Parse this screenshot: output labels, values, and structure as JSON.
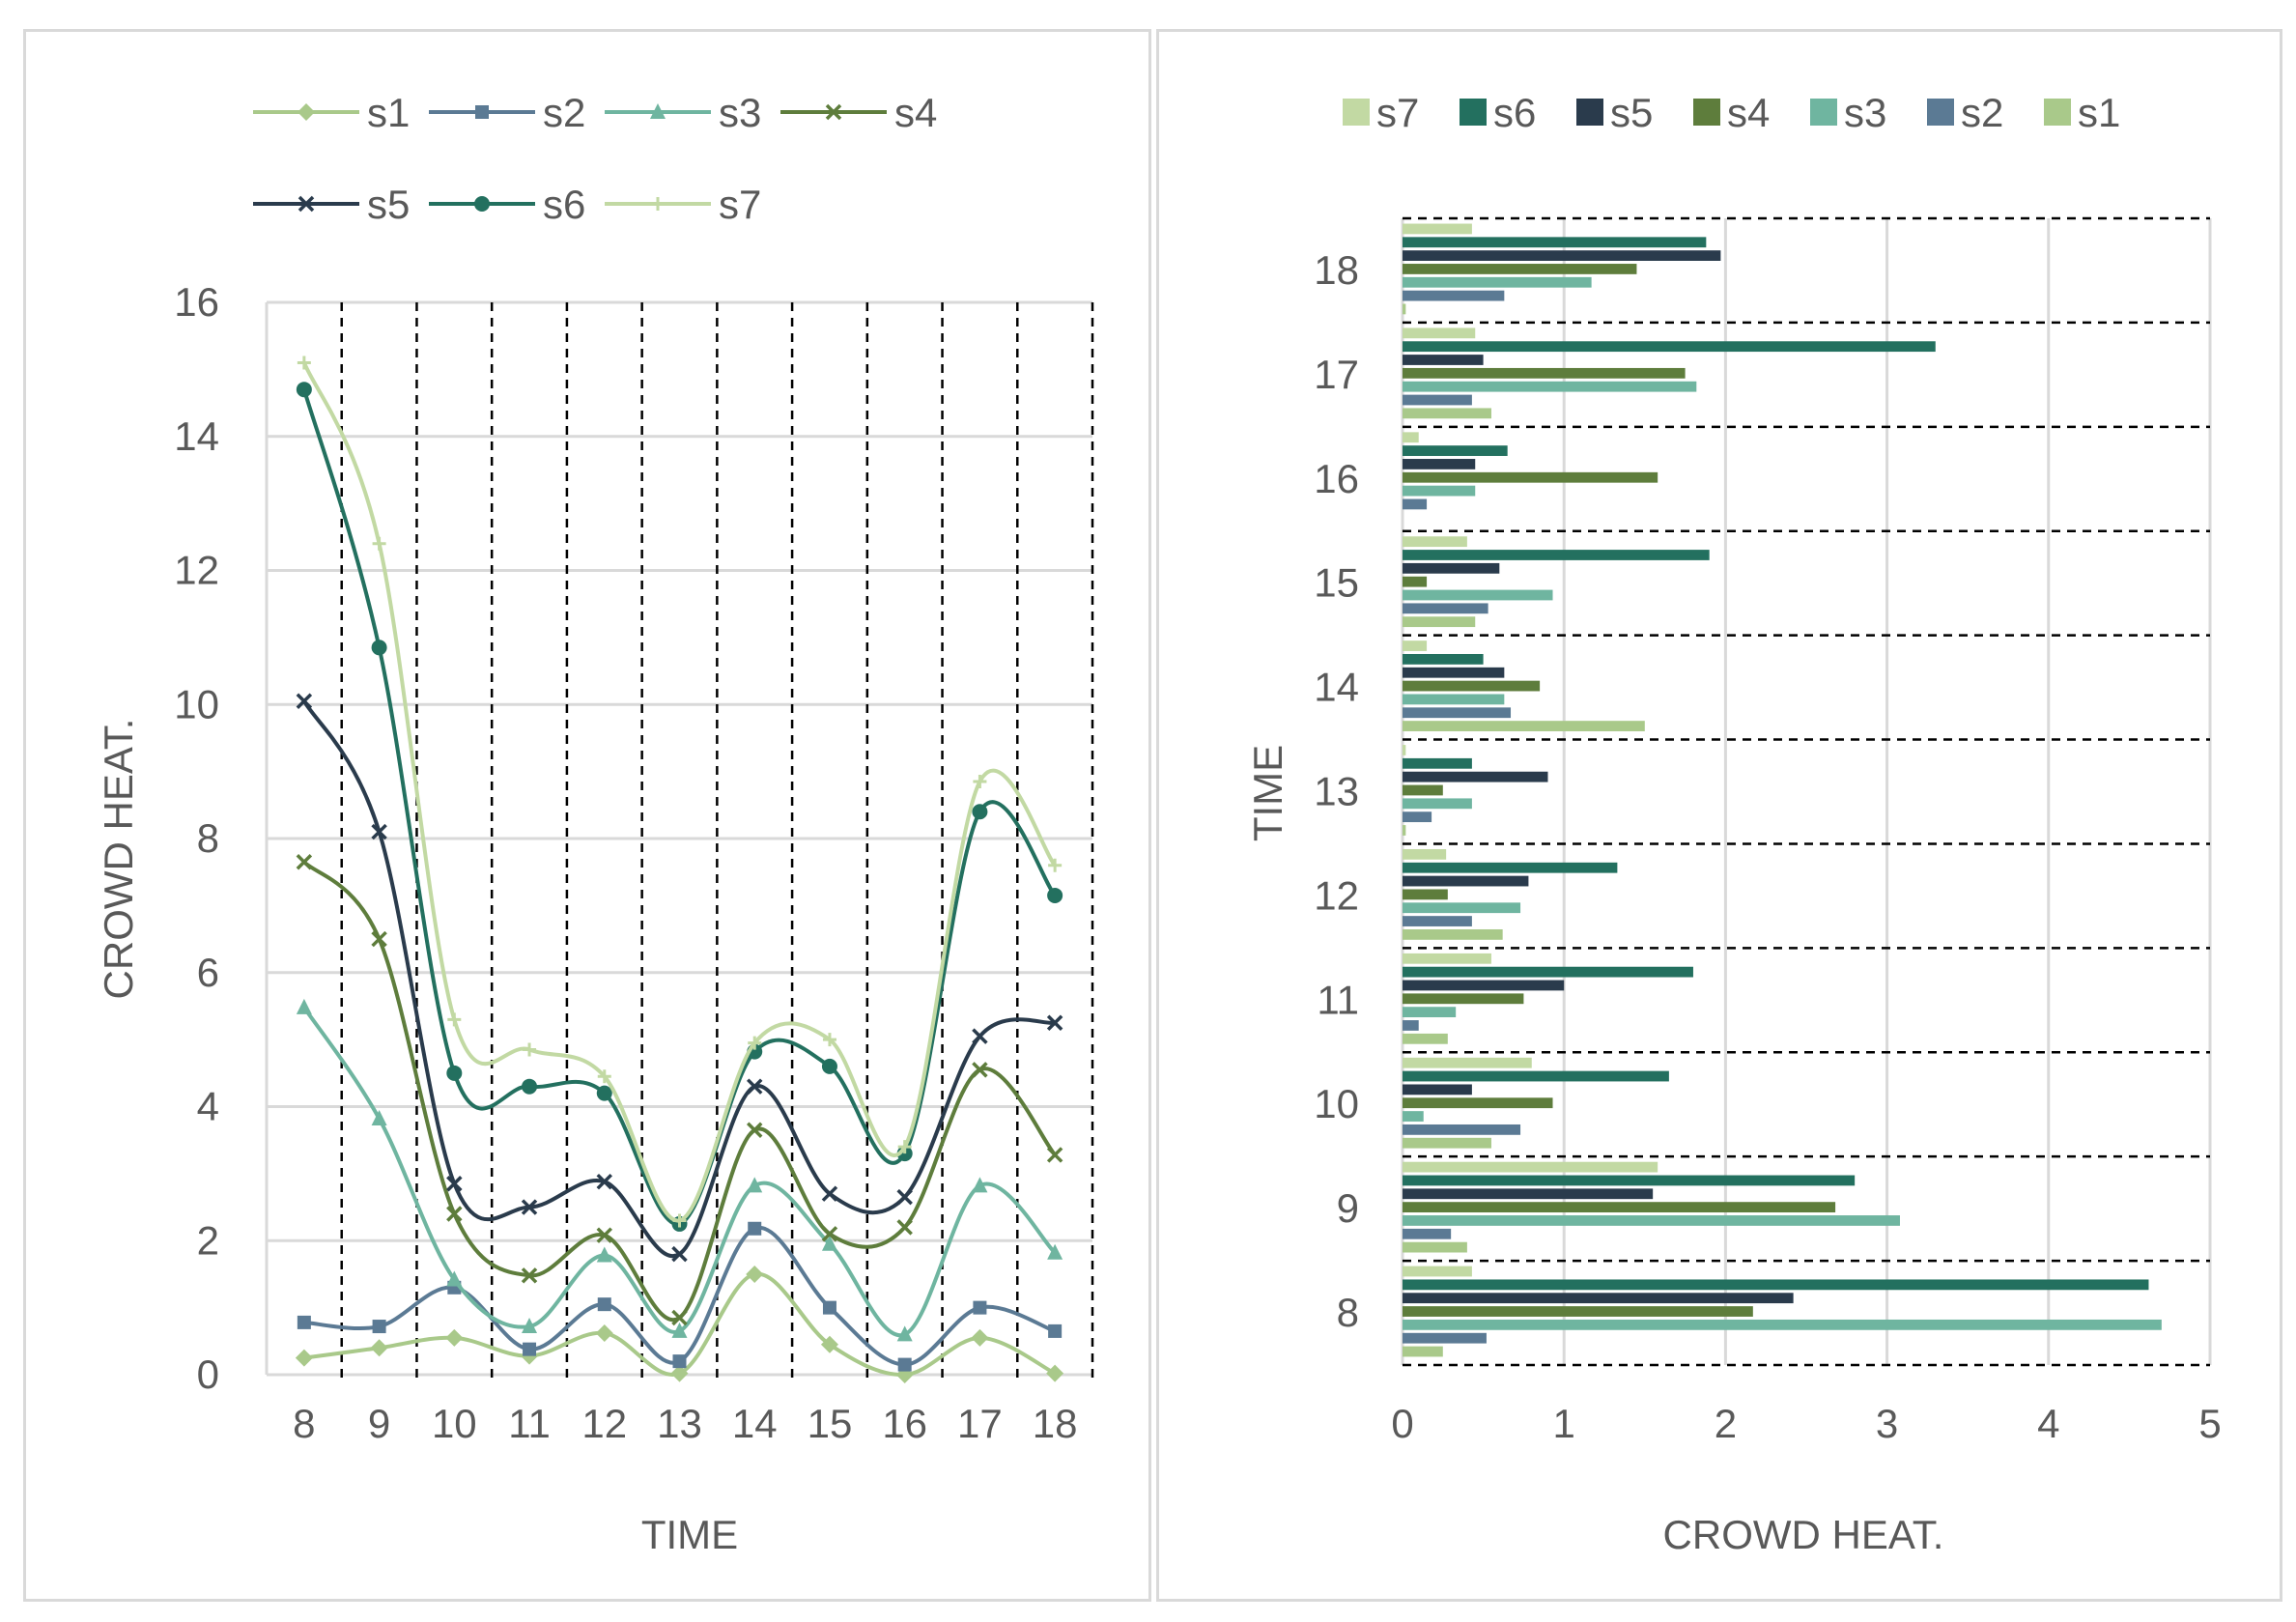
{
  "colors": {
    "s1": "#a9c98a",
    "s2": "#5b7a94",
    "s3": "#6fb5a0",
    "s4": "#5e7d3c",
    "s5": "#2a3b4c",
    "s6": "#23705f",
    "s7": "#c2d9a3",
    "grid": "#d9d9d9",
    "axis_text": "#595959"
  },
  "chart_data": [
    {
      "type": "line",
      "title": "",
      "xlabel": "TIME",
      "ylabel": "CROWD HEAT.",
      "x": [
        8,
        9,
        10,
        11,
        12,
        13,
        14,
        15,
        16,
        17,
        18
      ],
      "ylim": [
        0,
        16
      ],
      "yticks": [
        0,
        2,
        4,
        6,
        8,
        10,
        12,
        14,
        16
      ],
      "grid": true,
      "smooth": true,
      "legend_position": "top",
      "series": [
        {
          "name": "s1",
          "marker": "diamond",
          "values": [
            0.25,
            0.4,
            0.55,
            0.28,
            0.62,
            0.02,
            1.5,
            0.45,
            0.0,
            0.55,
            0.02
          ]
        },
        {
          "name": "s2",
          "marker": "square",
          "values": [
            0.78,
            0.72,
            1.3,
            0.38,
            1.05,
            0.2,
            2.18,
            1.0,
            0.15,
            1.0,
            0.65
          ]
        },
        {
          "name": "s3",
          "marker": "triangle",
          "values": [
            5.48,
            3.82,
            1.42,
            0.72,
            1.78,
            0.65,
            2.82,
            1.95,
            0.6,
            2.82,
            1.82
          ]
        },
        {
          "name": "s4",
          "marker": "x",
          "values": [
            7.65,
            6.5,
            2.4,
            1.48,
            2.08,
            0.85,
            3.65,
            2.1,
            2.2,
            4.55,
            3.28
          ]
        },
        {
          "name": "s5",
          "marker": "x",
          "values": [
            10.05,
            8.1,
            2.85,
            2.5,
            2.88,
            1.8,
            4.3,
            2.7,
            2.65,
            5.05,
            5.25
          ]
        },
        {
          "name": "s6",
          "marker": "circle",
          "values": [
            14.7,
            10.85,
            4.5,
            4.3,
            4.2,
            2.25,
            4.82,
            4.6,
            3.3,
            8.4,
            7.15
          ]
        },
        {
          "name": "s7",
          "marker": "plus",
          "values": [
            15.1,
            12.4,
            5.3,
            4.85,
            4.45,
            2.3,
            4.95,
            5.0,
            3.4,
            8.85,
            7.6
          ]
        }
      ]
    },
    {
      "type": "bar",
      "orientation": "horizontal",
      "title": "",
      "xlabel": "CROWD HEAT.",
      "ylabel": "TIME",
      "categories": [
        8,
        9,
        10,
        11,
        12,
        13,
        14,
        15,
        16,
        17,
        18
      ],
      "xlim": [
        0,
        5
      ],
      "xticks": [
        0,
        1,
        2,
        3,
        4,
        5
      ],
      "grid": true,
      "legend_position": "top",
      "legend_order": [
        "s7",
        "s6",
        "s5",
        "s4",
        "s3",
        "s2",
        "s1"
      ],
      "series": [
        {
          "name": "s1",
          "values": [
            0.25,
            0.4,
            0.55,
            0.28,
            0.62,
            0.02,
            1.5,
            0.45,
            0.0,
            0.55,
            0.02
          ]
        },
        {
          "name": "s2",
          "values": [
            0.52,
            0.3,
            0.73,
            0.1,
            0.43,
            0.18,
            0.67,
            0.53,
            0.15,
            0.43,
            0.63
          ]
        },
        {
          "name": "s3",
          "values": [
            4.7,
            3.08,
            0.13,
            0.33,
            0.73,
            0.43,
            0.63,
            0.93,
            0.45,
            1.82,
            1.17
          ]
        },
        {
          "name": "s4",
          "values": [
            2.17,
            2.68,
            0.93,
            0.75,
            0.28,
            0.25,
            0.85,
            0.15,
            1.58,
            1.75,
            1.45
          ]
        },
        {
          "name": "s5",
          "values": [
            2.42,
            1.55,
            0.43,
            1.0,
            0.78,
            0.9,
            0.63,
            0.6,
            0.45,
            0.5,
            1.97
          ]
        },
        {
          "name": "s6",
          "values": [
            4.62,
            2.8,
            1.65,
            1.8,
            1.33,
            0.43,
            0.5,
            1.9,
            0.65,
            3.3,
            1.88
          ]
        },
        {
          "name": "s7",
          "values": [
            0.43,
            1.58,
            0.8,
            0.55,
            0.27,
            0.02,
            0.15,
            0.4,
            0.1,
            0.45,
            0.43
          ]
        }
      ]
    }
  ]
}
